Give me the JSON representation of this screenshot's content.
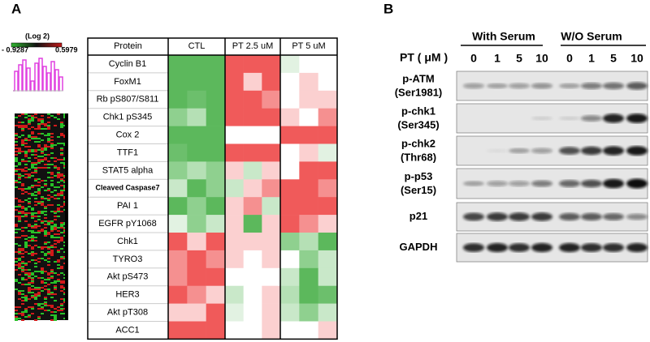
{
  "panel_a": {
    "label": "A",
    "key": {
      "title": "(Log 2)",
      "min": "- 0.9287",
      "max": "0.5979"
    },
    "table": {
      "columns": [
        "Protein",
        "CTL",
        "PT 2.5 uM",
        "PT 5 uM"
      ],
      "rows": [
        {
          "label": "Cyclin B1",
          "colors": [
            "#5cb85c",
            "#5cb85c",
            "#5cb85c",
            "#f05a5a",
            "#f05a5a",
            "#f05a5a",
            "#e2f2e2",
            "#ffffff",
            "#ffffff"
          ]
        },
        {
          "label": "FoxM1",
          "colors": [
            "#5cb85c",
            "#5cb85c",
            "#5cb85c",
            "#f05a5a",
            "#fbd0d0",
            "#f05a5a",
            "#ffffff",
            "#fbd0d0",
            "#ffffff"
          ]
        },
        {
          "label": "Rb pS807/S811",
          "colors": [
            "#5cb85c",
            "#6cbf6c",
            "#5cb85c",
            "#f05a5a",
            "#f05a5a",
            "#f59090",
            "#ffffff",
            "#fbd0d0",
            "#fbd0d0"
          ]
        },
        {
          "label": "Chk1 pS345",
          "colors": [
            "#8fd08f",
            "#b5e0b5",
            "#5cb85c",
            "#f05a5a",
            "#f05a5a",
            "#f05a5a",
            "#fbd0d0",
            "#ffffff",
            "#f59090"
          ]
        },
        {
          "label": "Cox 2",
          "colors": [
            "#5cb85c",
            "#5cb85c",
            "#5cb85c",
            "#ffffff",
            "#ffffff",
            "#ffffff",
            "#f05a5a",
            "#f05a5a",
            "#f05a5a"
          ]
        },
        {
          "label": "TTF1",
          "colors": [
            "#6cbf6c",
            "#5cb85c",
            "#5cb85c",
            "#f05a5a",
            "#f05a5a",
            "#f05a5a",
            "#ffffff",
            "#fbd0d0",
            "#e2f2e2"
          ]
        },
        {
          "label": "STAT5 alpha",
          "colors": [
            "#8fd08f",
            "#b5e0b5",
            "#8fd08f",
            "#fbd0d0",
            "#c9e8c9",
            "#fbd0d0",
            "#ffffff",
            "#f05a5a",
            "#f05a5a"
          ]
        },
        {
          "label": "Cleaved Caspase7",
          "colors": [
            "#c9e8c9",
            "#5cb85c",
            "#8fd08f",
            "#c9e8c9",
            "#fbd0d0",
            "#f59090",
            "#f05a5a",
            "#f05a5a",
            "#f59090"
          ]
        },
        {
          "label": "PAI 1",
          "colors": [
            "#5cb85c",
            "#8fd08f",
            "#5cb85c",
            "#fbd0d0",
            "#f59090",
            "#c9e8c9",
            "#f05a5a",
            "#f05a5a",
            "#f05a5a"
          ]
        },
        {
          "label": "EGFR pY1068",
          "colors": [
            "#e2f2e2",
            "#8fd08f",
            "#c9e8c9",
            "#fbd0d0",
            "#5cb85c",
            "#fbd0d0",
            "#f05a5a",
            "#f59090",
            "#fbd0d0"
          ]
        },
        {
          "label": "Chk1",
          "colors": [
            "#f05a5a",
            "#fbd0d0",
            "#f05a5a",
            "#fbd0d0",
            "#fbd0d0",
            "#fbd0d0",
            "#8fd08f",
            "#b5e0b5",
            "#5cb85c"
          ]
        },
        {
          "label": "TYRO3",
          "colors": [
            "#f59090",
            "#f05a5a",
            "#f59090",
            "#fbd0d0",
            "#ffffff",
            "#fbd0d0",
            "#ffffff",
            "#8fd08f",
            "#c9e8c9"
          ]
        },
        {
          "label": "Akt pS473",
          "colors": [
            "#f59090",
            "#f05a5a",
            "#f05a5a",
            "#ffffff",
            "#ffffff",
            "#ffffff",
            "#c9e8c9",
            "#5cb85c",
            "#c9e8c9"
          ]
        },
        {
          "label": "HER3",
          "colors": [
            "#f05a5a",
            "#f59090",
            "#fbd0d0",
            "#c9e8c9",
            "#ffffff",
            "#fbd0d0",
            "#b5e0b5",
            "#5cb85c",
            "#6cbf6c"
          ]
        },
        {
          "label": "Akt pT308",
          "colors": [
            "#fbd0d0",
            "#fbd0d0",
            "#f05a5a",
            "#e2f2e2",
            "#ffffff",
            "#fbd0d0",
            "#c9e8c9",
            "#8fd08f",
            "#c9e8c9"
          ]
        },
        {
          "label": "ACC1",
          "colors": [
            "#f05a5a",
            "#f05a5a",
            "#f05a5a",
            "#ffffff",
            "#ffffff",
            "#fbd0d0",
            "#ffffff",
            "#ffffff",
            "#fbd0d0"
          ]
        }
      ]
    }
  },
  "panel_b": {
    "label": "B",
    "groups": [
      "With Serum",
      "W/O Serum"
    ],
    "dose_label": "PT ( μM )",
    "doses": [
      "0",
      "1",
      "5",
      "10",
      "0",
      "1",
      "5",
      "10"
    ],
    "blots": [
      [
        "p-ATM",
        "(Ser1981)"
      ],
      [
        "p-chk1",
        "(Ser345)"
      ],
      [
        "p-chk2",
        "(Thr68)"
      ],
      [
        "p-p53",
        "(Ser15)"
      ],
      [
        "p21"
      ],
      [
        "GAPDH"
      ]
    ]
  }
}
